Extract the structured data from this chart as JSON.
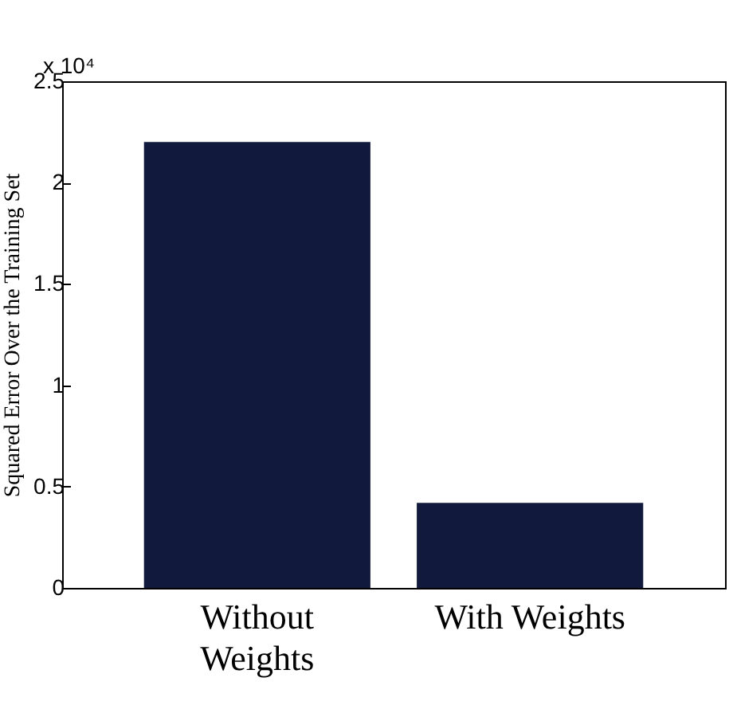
{
  "chart_data": {
    "type": "bar",
    "ylabel": "Squared Error Over the Training Set",
    "categories": [
      "Without Weights",
      "With Weights"
    ],
    "values": [
      2.2,
      0.42
    ],
    "color": "#111a3c",
    "ylim": [
      0,
      2.5
    ],
    "yticks": [
      0,
      0.5,
      1,
      1.5,
      2,
      2.5
    ],
    "grid": false,
    "annotations": [
      "x 10⁴"
    ]
  }
}
